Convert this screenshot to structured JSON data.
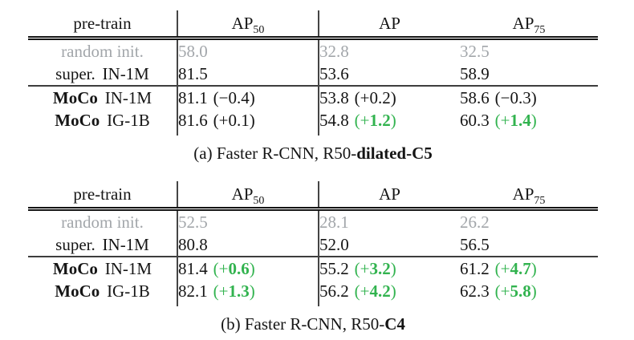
{
  "colors": {
    "ink": "#151515",
    "muted": "#a2a6aa",
    "green": "#32b34f",
    "rule": "#454545",
    "rule2": "#3d3d3d"
  },
  "tables": [
    {
      "id": "a",
      "columns": [
        {
          "base": "pre-train",
          "sub": ""
        },
        {
          "base": "AP",
          "sub": "50"
        },
        {
          "base": "AP",
          "sub": ""
        },
        {
          "base": "AP",
          "sub": "75"
        }
      ],
      "rows": [
        {
          "muted": true,
          "name_parts": [
            {
              "text": "random init.",
              "bold": false
            }
          ],
          "cells": [
            {
              "value": "58.0"
            },
            {
              "value": "32.8"
            },
            {
              "value": "32.5"
            }
          ]
        },
        {
          "muted": false,
          "name_parts": [
            {
              "text": "super.",
              "bold": false
            },
            {
              "text": "IN-1M",
              "bold": false
            }
          ],
          "cells": [
            {
              "value": "81.5"
            },
            {
              "value": "53.6"
            },
            {
              "value": "58.9"
            }
          ]
        },
        {
          "muted": false,
          "name_parts": [
            {
              "text": "MoCo",
              "bold": true
            },
            {
              "text": "IN-1M",
              "bold": false
            }
          ],
          "cells": [
            {
              "value": "81.1",
              "delta": "(−0.4)",
              "green": false
            },
            {
              "value": "53.8",
              "delta": "(+0.2)",
              "green": false
            },
            {
              "value": "58.6",
              "delta": "(−0.3)",
              "green": false
            }
          ]
        },
        {
          "muted": false,
          "name_parts": [
            {
              "text": "MoCo",
              "bold": true
            },
            {
              "text": "IG-1B",
              "bold": false
            }
          ],
          "cells": [
            {
              "value": "81.6",
              "delta": "(+0.1)",
              "green": false
            },
            {
              "value": "54.8",
              "delta": "(+1.2)",
              "green": true
            },
            {
              "value": "60.3",
              "delta": "(+1.4)",
              "green": true
            }
          ]
        }
      ],
      "caption_parts": [
        {
          "text": "(a) Faster R-CNN, R50-",
          "bold": false
        },
        {
          "text": "dilated-C5",
          "bold": true
        }
      ]
    },
    {
      "id": "b",
      "columns": [
        {
          "base": "pre-train",
          "sub": ""
        },
        {
          "base": "AP",
          "sub": "50"
        },
        {
          "base": "AP",
          "sub": ""
        },
        {
          "base": "AP",
          "sub": "75"
        }
      ],
      "rows": [
        {
          "muted": true,
          "name_parts": [
            {
              "text": "random init.",
              "bold": false
            }
          ],
          "cells": [
            {
              "value": "52.5"
            },
            {
              "value": "28.1"
            },
            {
              "value": "26.2"
            }
          ]
        },
        {
          "muted": false,
          "name_parts": [
            {
              "text": "super.",
              "bold": false
            },
            {
              "text": "IN-1M",
              "bold": false
            }
          ],
          "cells": [
            {
              "value": "80.8"
            },
            {
              "value": "52.0"
            },
            {
              "value": "56.5"
            }
          ]
        },
        {
          "muted": false,
          "name_parts": [
            {
              "text": "MoCo",
              "bold": true
            },
            {
              "text": "IN-1M",
              "bold": false
            }
          ],
          "cells": [
            {
              "value": "81.4",
              "delta": "(+0.6)",
              "green": true
            },
            {
              "value": "55.2",
              "delta": "(+3.2)",
              "green": true
            },
            {
              "value": "61.2",
              "delta": "(+4.7)",
              "green": true
            }
          ]
        },
        {
          "muted": false,
          "name_parts": [
            {
              "text": "MoCo",
              "bold": true
            },
            {
              "text": "IG-1B",
              "bold": false
            }
          ],
          "cells": [
            {
              "value": "82.1",
              "delta": "(+1.3)",
              "green": true
            },
            {
              "value": "56.2",
              "delta": "(+4.2)",
              "green": true
            },
            {
              "value": "62.3",
              "delta": "(+5.8)",
              "green": true
            }
          ]
        }
      ],
      "caption_parts": [
        {
          "text": "(b) Faster R-CNN, R50-",
          "bold": false
        },
        {
          "text": "C4",
          "bold": true
        }
      ]
    }
  ]
}
